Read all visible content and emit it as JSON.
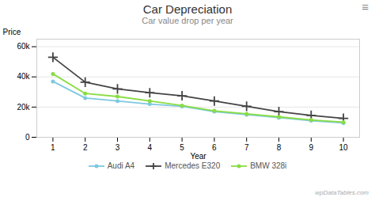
{
  "chart_data": {
    "type": "line",
    "title": "Car Depreciation",
    "subtitle": "Car value drop per year",
    "xlabel": "Year",
    "ylabel": "Price",
    "x": [
      1,
      2,
      3,
      4,
      5,
      6,
      7,
      8,
      9,
      10
    ],
    "series": [
      {
        "name": "Audi A4",
        "color": "#7ec8e3",
        "marker": "circle",
        "values": [
          37000,
          26000,
          24000,
          22000,
          20500,
          17000,
          15000,
          13000,
          11000,
          9500
        ]
      },
      {
        "name": "Mercedes E320",
        "color": "#444444",
        "marker": "plus",
        "values": [
          53000,
          36500,
          32000,
          29500,
          27500,
          24000,
          20500,
          17000,
          14500,
          12500
        ]
      },
      {
        "name": "BMW 328i",
        "color": "#88dd44",
        "marker": "circle",
        "values": [
          42000,
          29000,
          27000,
          24000,
          21000,
          17500,
          15500,
          13500,
          11500,
          10000
        ]
      }
    ],
    "xlim": [
      0.5,
      10.5
    ],
    "xticks": [
      1,
      2,
      3,
      4,
      5,
      6,
      7,
      8,
      9,
      10
    ],
    "ylim": [
      0,
      65000
    ],
    "yticks": [
      0,
      {
        "value": 20000,
        "label": "20k"
      },
      {
        "value": 40000,
        "label": "40k"
      },
      {
        "value": 60000,
        "label": "60k"
      }
    ],
    "grid": "y",
    "legend": "bottom",
    "annotations": [
      "≡",
      "wpDataTables.com"
    ]
  }
}
